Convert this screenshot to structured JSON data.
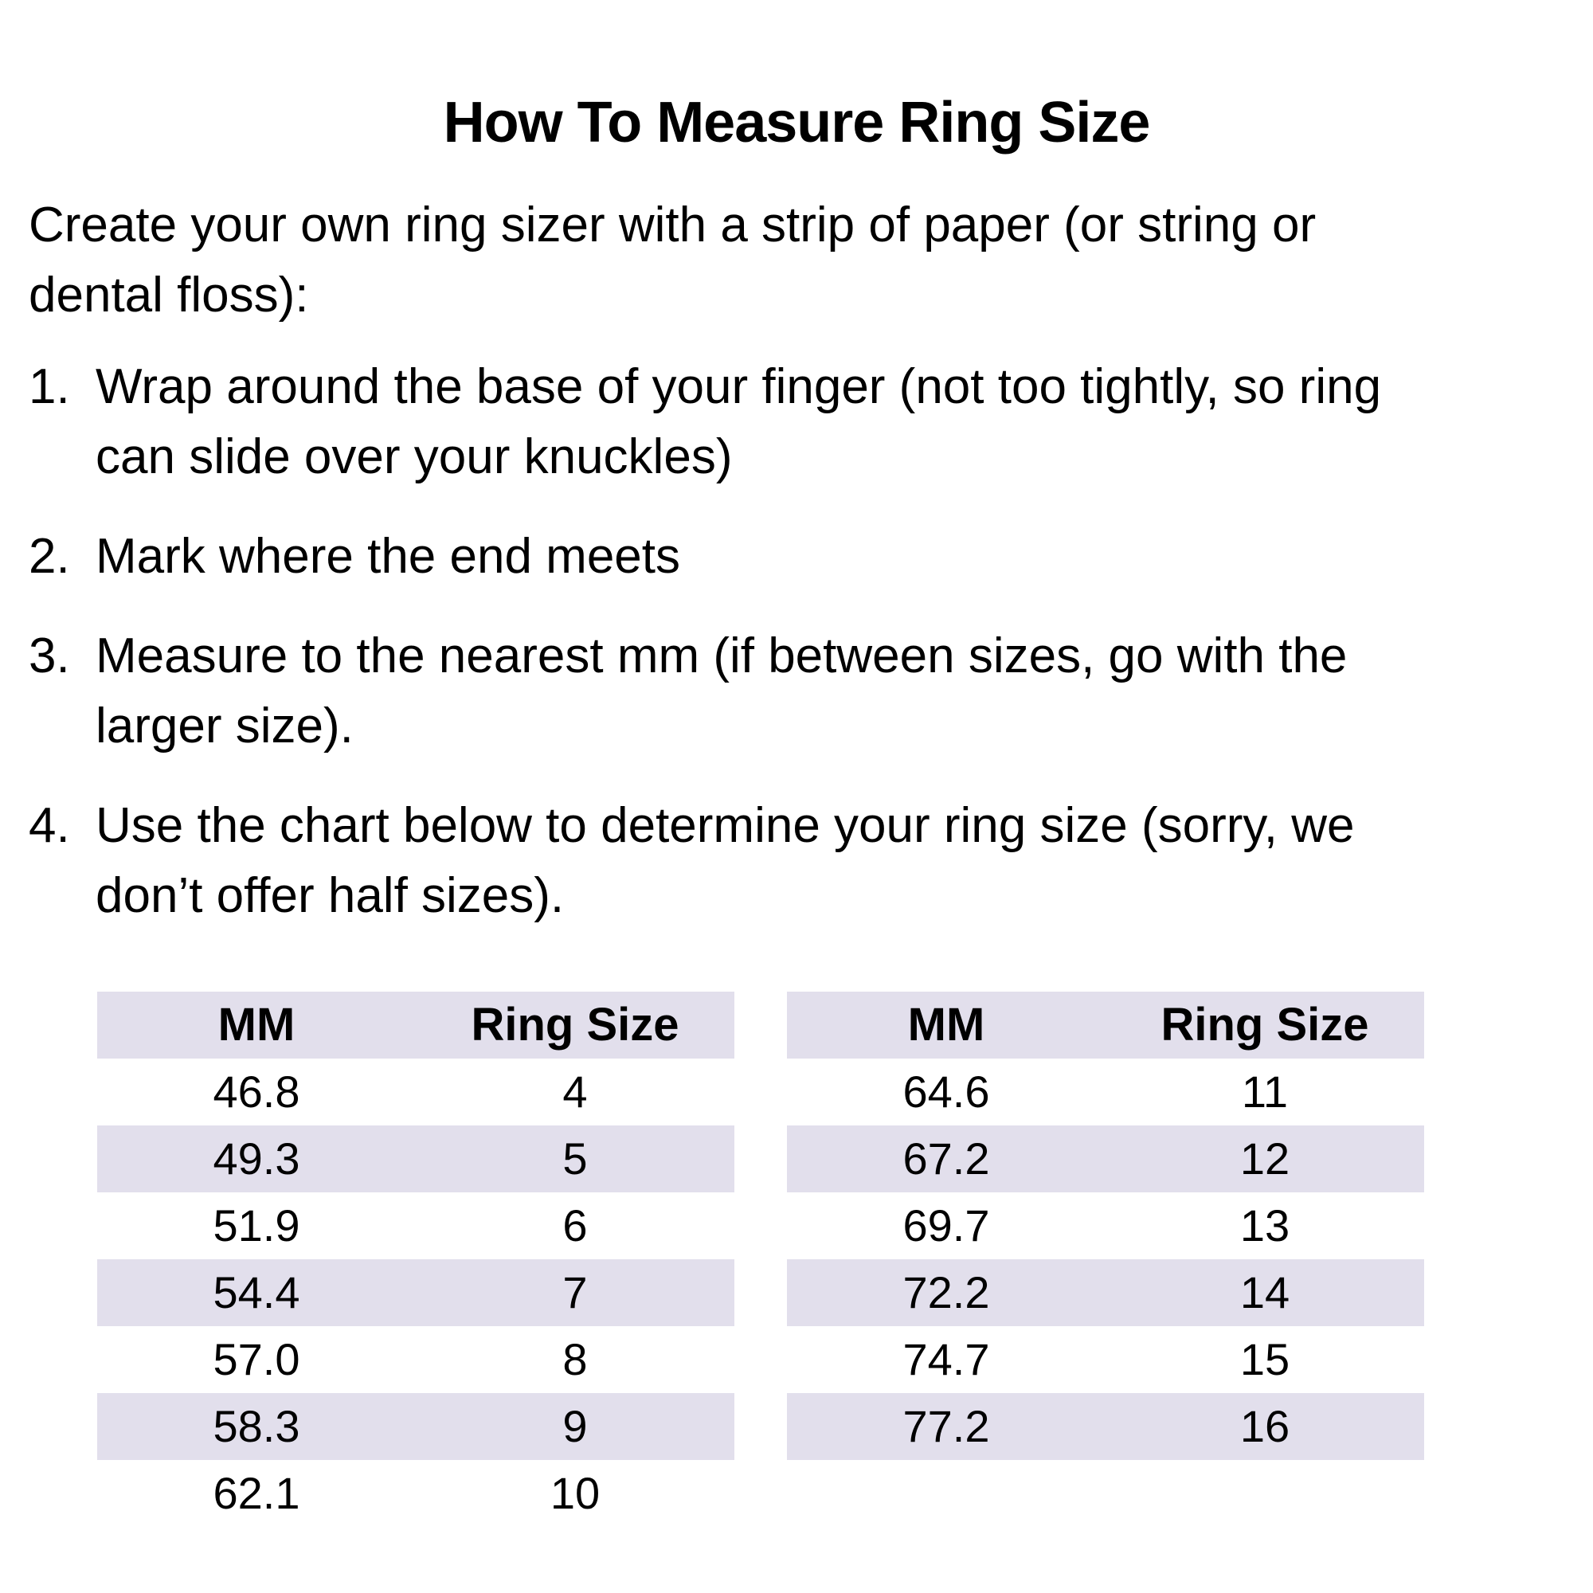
{
  "page": {
    "title": "How To Measure Ring Size",
    "intro_lines": [
      "Create your own ring sizer with a strip of paper (or string or",
      "dental floss):"
    ],
    "steps": [
      {
        "number": "1.",
        "lines": [
          "Wrap around the base of your finger (not too tightly, so ring",
          "can slide over your knuckles)"
        ]
      },
      {
        "number": "2.",
        "lines": [
          "Mark where the end meets"
        ]
      },
      {
        "number": "3.",
        "lines": [
          "Measure to the nearest mm (if between sizes, go with the",
          "larger size)."
        ]
      },
      {
        "number": "4.",
        "lines": [
          "Use the chart below to determine your ring size (sorry, we",
          "don’t offer half sizes)."
        ]
      }
    ],
    "tables": [
      {
        "headers": [
          "MM",
          "Ring Size"
        ],
        "rows": [
          [
            "46.8",
            "4"
          ],
          [
            "49.3",
            "5"
          ],
          [
            "51.9",
            "6"
          ],
          [
            "54.4",
            "7"
          ],
          [
            "57.0",
            "8"
          ],
          [
            "58.3",
            "9"
          ],
          [
            "62.1",
            "10"
          ]
        ]
      },
      {
        "headers": [
          "MM",
          "Ring Size"
        ],
        "rows": [
          [
            "64.6",
            "11"
          ],
          [
            "67.2",
            "12"
          ],
          [
            "69.7",
            "13"
          ],
          [
            "72.2",
            "14"
          ],
          [
            "74.7",
            "15"
          ],
          [
            "77.2",
            "16"
          ]
        ]
      }
    ],
    "colors": {
      "background": "#FFFFFF",
      "text": "#000000",
      "stripe": "#E2DFEC"
    }
  }
}
